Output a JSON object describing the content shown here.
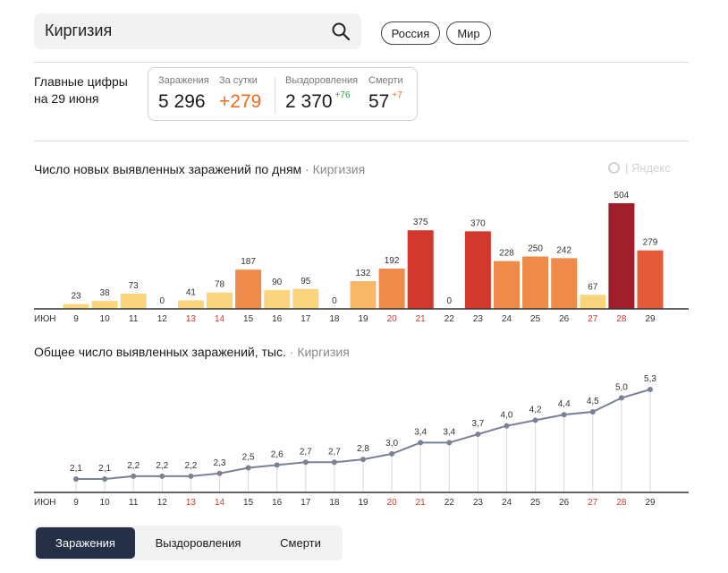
{
  "search": {
    "query": "Киргизия"
  },
  "region_buttons": [
    "Россия",
    "Мир"
  ],
  "summary": {
    "title_line1": "Главные цифры",
    "title_line2": "на 29 июня",
    "infections": {
      "label": "Заражения",
      "value": "5 296"
    },
    "daily": {
      "label": "За сутки",
      "value": "+279"
    },
    "recovered": {
      "label": "Выздоровления",
      "value": "2 370",
      "delta": "+76"
    },
    "deaths": {
      "label": "Смерти",
      "value": "57",
      "delta": "+7"
    }
  },
  "watermark": "| Яндекс",
  "colors": {
    "accent": "#f26b1d",
    "green": "#2aa34b",
    "dark_tab": "#252f45",
    "line": "#7b8096",
    "weekend": "#d2382c"
  },
  "chart_data": [
    {
      "type": "bar",
      "title": "Число новых выявленных заражений по дням",
      "region": "Киргизия",
      "month_label": "ИЮН",
      "categories": [
        "9",
        "10",
        "11",
        "12",
        "13",
        "14",
        "15",
        "16",
        "17",
        "18",
        "19",
        "20",
        "21",
        "22",
        "23",
        "24",
        "25",
        "26",
        "27",
        "28",
        "29"
      ],
      "weekend": [
        "13",
        "14",
        "20",
        "21",
        "27",
        "28"
      ],
      "values": [
        23,
        38,
        73,
        0,
        41,
        78,
        187,
        90,
        95,
        0,
        132,
        192,
        375,
        0,
        370,
        228,
        250,
        242,
        67,
        504,
        279
      ],
      "ylim": [
        0,
        504
      ]
    },
    {
      "type": "line",
      "title": "Общее число выявленных заражений, тыс.",
      "region": "Киргизия",
      "month_label": "ИЮН",
      "categories": [
        "9",
        "10",
        "11",
        "12",
        "13",
        "14",
        "15",
        "16",
        "17",
        "18",
        "19",
        "20",
        "21",
        "22",
        "23",
        "24",
        "25",
        "26",
        "27",
        "28",
        "29"
      ],
      "weekend": [
        "13",
        "14",
        "20",
        "21",
        "27",
        "28"
      ],
      "values": [
        2.1,
        2.1,
        2.2,
        2.2,
        2.2,
        2.3,
        2.5,
        2.6,
        2.7,
        2.7,
        2.8,
        3.0,
        3.4,
        3.4,
        3.7,
        4.0,
        4.2,
        4.4,
        4.5,
        5.0,
        5.3
      ],
      "value_labels": [
        "2,1",
        "2,1",
        "2,2",
        "2,2",
        "2,2",
        "2,3",
        "2,5",
        "2,6",
        "2,7",
        "2,7",
        "2,8",
        "3,0",
        "3,4",
        "3,4",
        "3,7",
        "4,0",
        "4,2",
        "4,4",
        "4,5",
        "5,0",
        "5,3"
      ],
      "ylim": [
        0,
        5.3
      ]
    }
  ],
  "tabs": [
    "Заражения",
    "Выздоровления",
    "Смерти"
  ]
}
